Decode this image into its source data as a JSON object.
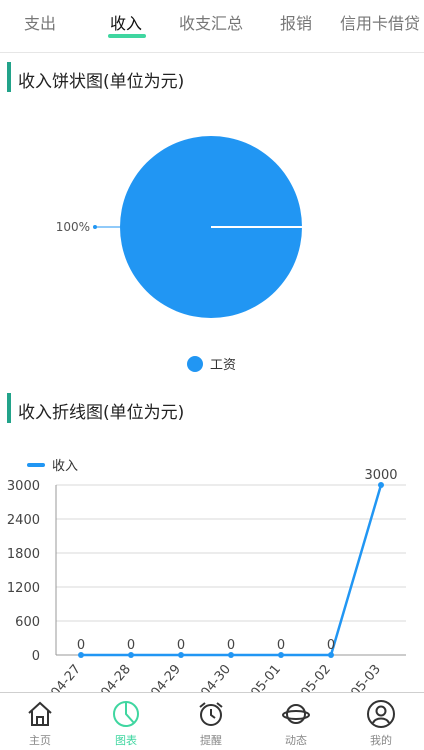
{
  "tabs": [
    {
      "label": "支出"
    },
    {
      "label": "收入",
      "active": true
    },
    {
      "label": "收支汇总"
    },
    {
      "label": "报销"
    },
    {
      "label": "信用卡借贷"
    }
  ],
  "pie_section": {
    "title": "收入饼状图(单位为元)"
  },
  "line_section": {
    "title": "收入折线图(单位为元)"
  },
  "colors": {
    "accent": "#2196f3",
    "active": "#3fd6a0",
    "section_bar": "#22a38a"
  },
  "chart_data": [
    {
      "type": "pie",
      "slices": [
        {
          "label": "工资",
          "value": 100,
          "percent_label": "100%"
        }
      ],
      "legend": [
        "工资"
      ],
      "legend_position": "bottom"
    },
    {
      "type": "line",
      "categories": [
        "04-27",
        "04-28",
        "04-29",
        "04-30",
        "05-01",
        "05-02",
        "05-03"
      ],
      "series": [
        {
          "name": "收入",
          "values": [
            0,
            0,
            0,
            0,
            0,
            0,
            3000
          ]
        }
      ],
      "yticks": [
        "0",
        "600",
        "1200",
        "1800",
        "2400",
        "3000"
      ],
      "ylim": [
        0,
        3000
      ],
      "legend_position": "top-left",
      "grid": true
    }
  ],
  "bottom_nav": [
    {
      "label": "主页",
      "icon": "home-icon"
    },
    {
      "label": "图表",
      "icon": "chart-icon",
      "active": true
    },
    {
      "label": "提醒",
      "icon": "alarm-icon"
    },
    {
      "label": "动态",
      "icon": "planet-icon"
    },
    {
      "label": "我的",
      "icon": "user-icon"
    }
  ]
}
